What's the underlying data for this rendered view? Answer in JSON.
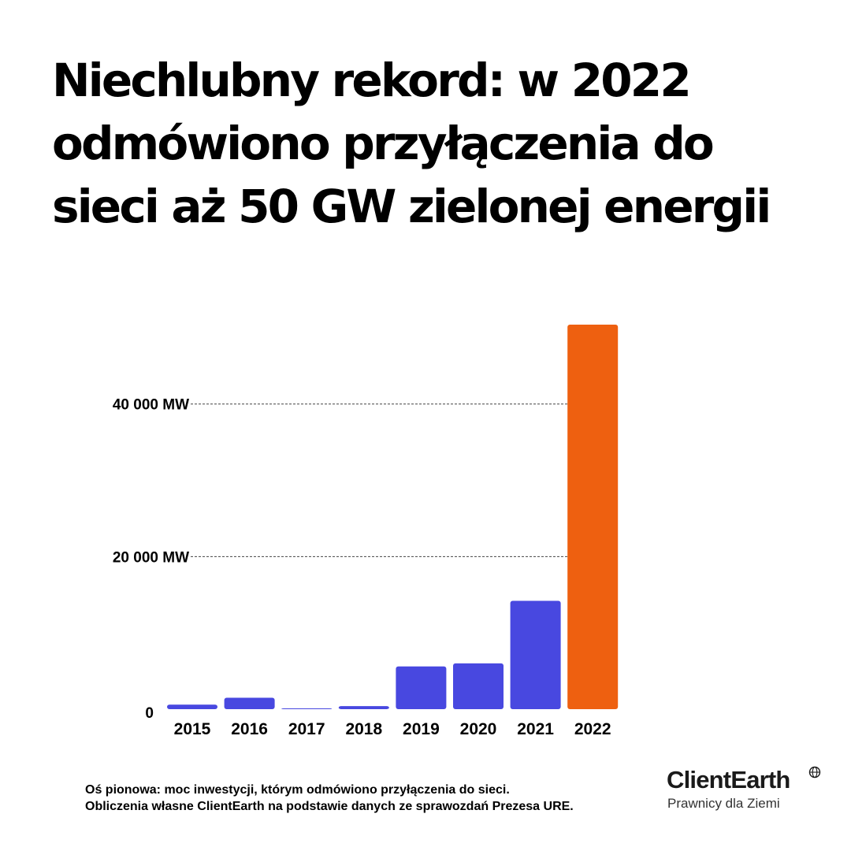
{
  "title": "Niechlubny rekord: w 2022 odmówiono przyłączenia do sieci aż 50 GW zielonej energii",
  "chart_data": {
    "type": "bar",
    "categories": [
      "2015",
      "2016",
      "2017",
      "2018",
      "2019",
      "2020",
      "2021",
      "2022"
    ],
    "values": [
      600,
      1500,
      100,
      400,
      5600,
      6000,
      14200,
      50400
    ],
    "ylim": [
      0,
      50400
    ],
    "yticks": [
      {
        "value": 0,
        "label": "0"
      },
      {
        "value": 20000,
        "label": "20 000 MW"
      },
      {
        "value": 40000,
        "label": "40 000 MW"
      }
    ],
    "grid": "dashed lines at labeled y ticks",
    "xlabel": "",
    "ylabel": "",
    "highlight_index": 7
  },
  "colors": {
    "bar": "#4848e0",
    "highlight": "#ee6010",
    "text": "#000000"
  },
  "footnote": {
    "line1": "Oś pionowa: moc inwestycji, którym odmówiono przyłączenia do sieci.",
    "line2": "Obliczenia własne ClientEarth na podstawie danych ze sprawozdań Prezesa URE."
  },
  "logo": {
    "name": "ClientEarth",
    "tagline": "Prawnicy dla Ziemi",
    "icon": "globe-icon"
  }
}
